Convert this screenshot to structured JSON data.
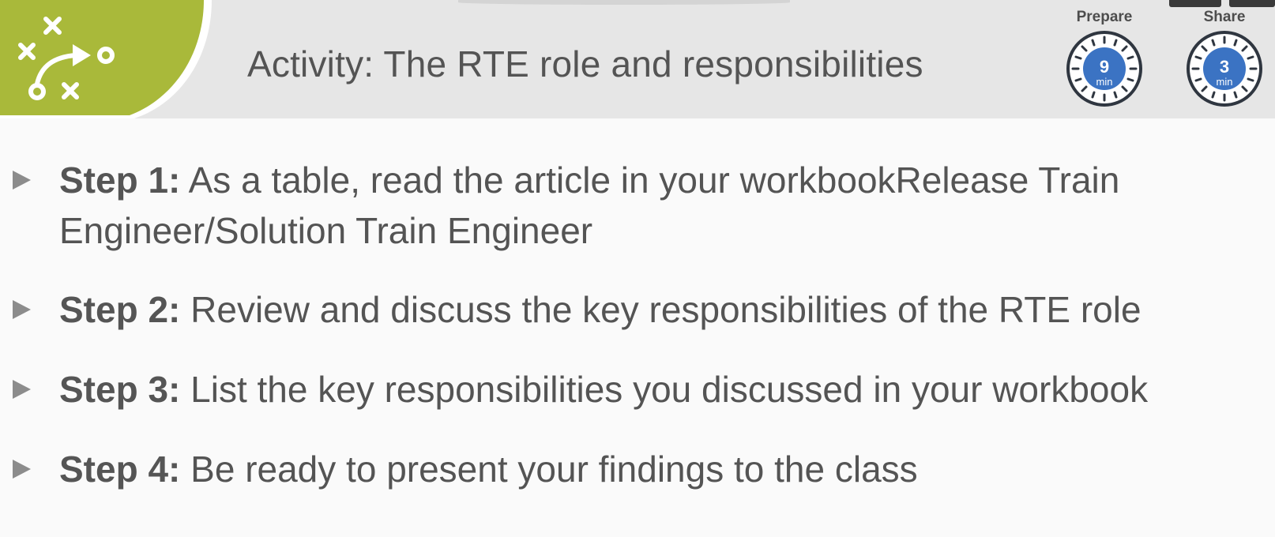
{
  "slide": {
    "title": "Activity: The RTE role and responsibilities"
  },
  "timers": [
    {
      "label": "Prepare",
      "value": "9",
      "unit": "min",
      "icon": "stopwatch-icon"
    },
    {
      "label": "Share",
      "value": "3",
      "unit": "min",
      "icon": "stopwatch-icon"
    }
  ],
  "logo": {
    "icon": "strategy-play-icon",
    "color": "#a9b93a"
  },
  "steps": [
    {
      "label": "Step 1:",
      "text": " As a table, read the  article in your workbookRelease Train Engineer/Solution Train Engineer"
    },
    {
      "label": "Step 2:",
      "text": " Review and discuss the key responsibilities of the RTE role"
    },
    {
      "label": "Step 3:",
      "text": " List the key responsibilities you discussed in your workbook"
    },
    {
      "label": "Step 4:",
      "text": " Be ready to present your findings to the class"
    }
  ],
  "colors": {
    "header_bg": "#e6e6e6",
    "text": "#545454",
    "accent_green": "#a9b93a",
    "timer_blue": "#3b73c3",
    "timer_ring": "#2f3640"
  }
}
